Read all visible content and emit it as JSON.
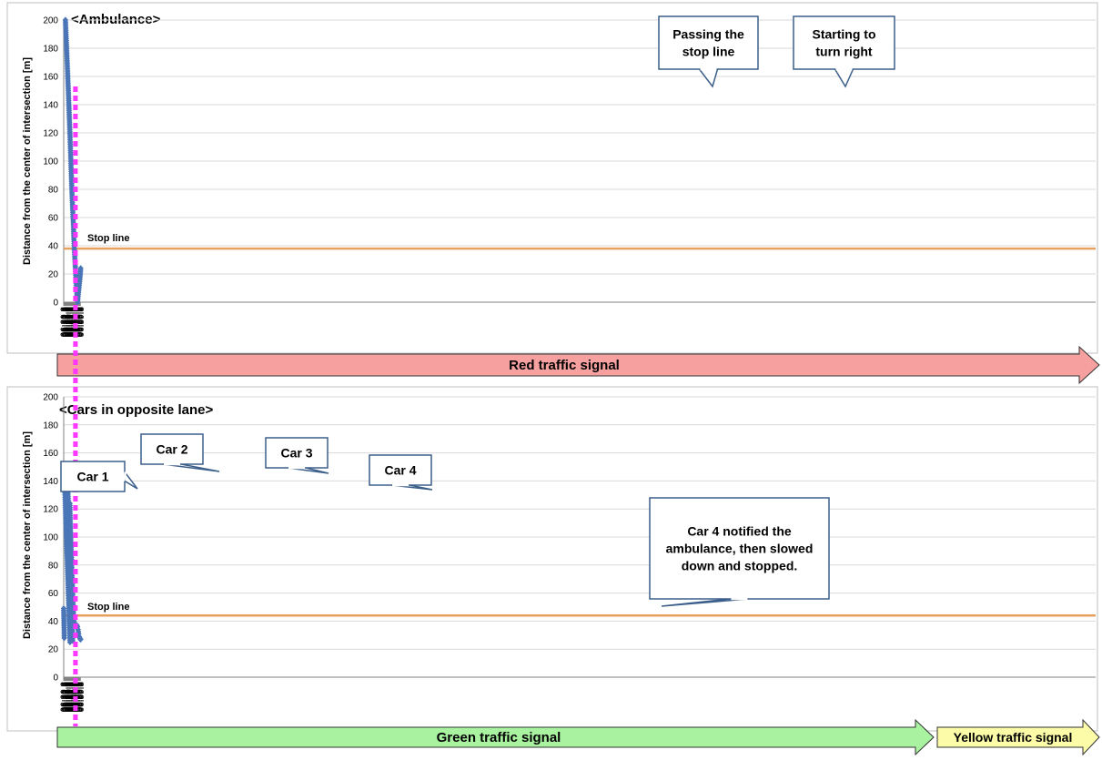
{
  "chart_data": [
    {
      "type": "scatter",
      "title": "<Ambulance>",
      "ylabel": "Distance from the center of intersection [m]",
      "xlabel": "",
      "ylim": [
        0,
        200
      ],
      "yticks": [
        0,
        20,
        40,
        60,
        80,
        100,
        120,
        140,
        160,
        180,
        200
      ],
      "xticks": [
        "06:30.3",
        "06:31.3",
        "06:32.3",
        "06:33.3",
        "06:34.3",
        "06:35.3",
        "06:36.3",
        "06:37.3",
        "06:38.3",
        "06:39.3",
        "06:40.3",
        "06:41.3",
        "06:42.3",
        "06:43.3",
        "06:44.3",
        "06:45.3",
        "06:46.3",
        "06:47.3",
        "06:48.3",
        "06:49.3",
        "06:50.3",
        "06:51.3",
        "06:52.3",
        "06:53.3",
        "06:54.3",
        "06:55.3",
        "06:56.3",
        "06:57.3",
        "06:58.3",
        "06:59.3"
      ],
      "grid": "horizontal",
      "reference_line": {
        "label": "Stop line",
        "value": 38,
        "color": "#e8a060"
      },
      "series": [
        {
          "color": "#4a76b8",
          "x": [
            "06:33.3",
            "06:35.3",
            "06:37.3",
            "06:39.3",
            "06:41.3",
            "06:42.3",
            "06:43.3",
            "06:45.3",
            "06:47.3",
            "06:48.3",
            "06:49.3",
            "06:50.3",
            "06:51.3",
            "06:52.3",
            "06:53.3",
            "06:54.3",
            "06:54.6",
            "06:55.3",
            "06:56.3",
            "06:57.3",
            "06:58.3",
            "06:59.3",
            "06:59.9"
          ],
          "y": [
            200,
            181,
            161,
            140,
            118,
            106,
            94,
            72,
            54,
            43,
            34,
            27,
            19,
            12,
            6,
            1,
            0,
            4,
            8,
            12,
            16,
            20,
            24
          ]
        }
      ],
      "signal": {
        "label": "Red traffic signal",
        "color": "#f7a0a0"
      }
    },
    {
      "type": "scatter",
      "title": "<Cars in opposite lane>",
      "ylabel": "Distance from the center of intersection [m]",
      "xlabel": "",
      "ylim": [
        0,
        200
      ],
      "yticks": [
        0,
        20,
        40,
        60,
        80,
        100,
        120,
        140,
        160,
        180,
        200
      ],
      "xticks": [
        "06:30.3",
        "06:31.3",
        "06:32.3",
        "06:33.3",
        "06:34.3",
        "06:35.3",
        "06:36.3",
        "06:37.3",
        "06:38.3",
        "06:39.3",
        "06:40.3",
        "06:41.3",
        "06:42.3",
        "06:43.3",
        "06:44.3",
        "06:45.3",
        "06:46.3",
        "06:47.3",
        "06:48.3",
        "06:49.3",
        "06:50.3",
        "06:51.3",
        "06:52.3",
        "06:53.3",
        "06:54.3",
        "06:55.3",
        "06:56.3",
        "06:57.3",
        "06:58.3",
        "06:59.3"
      ],
      "grid": "horizontal",
      "reference_line": {
        "label": "Stop line",
        "value": 44,
        "color": "#e8a060"
      },
      "series": [
        {
          "name": "Car 1",
          "color": "#4a76b8",
          "x": [
            "06:30.3",
            "06:30.8",
            "06:31.3"
          ],
          "y": [
            49,
            38,
            28
          ]
        },
        {
          "name": "Car 1",
          "color": "#4a76b8",
          "x": [
            "06:32.3",
            "06:33.3",
            "06:34.3",
            "06:35.3",
            "06:36.3",
            "06:37.3",
            "06:38.3",
            "06:39.3",
            "06:40.3",
            "06:41.3"
          ],
          "y": [
            133,
            121,
            108,
            96,
            85,
            73,
            61,
            49,
            37,
            25
          ]
        },
        {
          "name": "Car 2",
          "color": "#4a76b8",
          "x": [
            "06:34.6",
            "06:35.3",
            "06:36.3",
            "06:37.3",
            "06:38.3",
            "06:39.3",
            "06:40.3",
            "06:41.3",
            "06:42.3",
            "06:43.3",
            "06:44.3",
            "06:44.6"
          ],
          "y": [
            147,
            140,
            129,
            117,
            105,
            93,
            81,
            69,
            57,
            45,
            33,
            27
          ]
        },
        {
          "name": "Car 3",
          "color": "#4a76b8",
          "x": [
            "06:37.3",
            "06:38.3",
            "06:39.3",
            "06:40.3",
            "06:41.3",
            "06:42.3",
            "06:43.3",
            "06:44.3",
            "06:45.3",
            "06:45.9"
          ],
          "y": [
            136,
            125,
            112,
            100,
            89,
            75,
            62,
            49,
            36,
            26
          ]
        },
        {
          "name": "Car 4",
          "color": "#4a76b8",
          "x": [
            "06:41.0",
            "06:42.3",
            "06:43.3",
            "06:44.3",
            "06:45.3",
            "06:46.3",
            "06:47.3",
            "06:48.3",
            "06:49.3",
            "06:50.3",
            "06:51.3",
            "06:52.3",
            "06:53.3",
            "06:54.3",
            "06:55.3",
            "06:56.3",
            "06:57.3",
            "06:58.3",
            "06:59.3",
            "06:59.9"
          ],
          "y": [
            124,
            102,
            91,
            80,
            68,
            56,
            46,
            40,
            38,
            37,
            37,
            37,
            37,
            36,
            34,
            31,
            29,
            28,
            27,
            27
          ]
        }
      ],
      "signal": {
        "label": "Green traffic signal",
        "color": "#a8f2a0"
      },
      "signal2": {
        "label": "Yellow traffic signal",
        "color": "#fbfba8"
      }
    }
  ],
  "callouts": {
    "passing": "Passing  the\nstop line",
    "turning": "Starting to\nturn right",
    "car1": "Car 1",
    "car2": "Car 2",
    "car3": "Car 3",
    "car4": "Car 4",
    "notice": "Car 4 notified the\nambulance, then slowed\ndown and stopped."
  },
  "event_times": {
    "passing": "06:48.8",
    "turning": "06:52.8"
  },
  "colors": {
    "marker": "#4a76b8",
    "stop_line": "#e8a060",
    "event_line": "#ff33ff",
    "callout_border": "#3b5f8a",
    "grid": "#d9d9d9"
  }
}
